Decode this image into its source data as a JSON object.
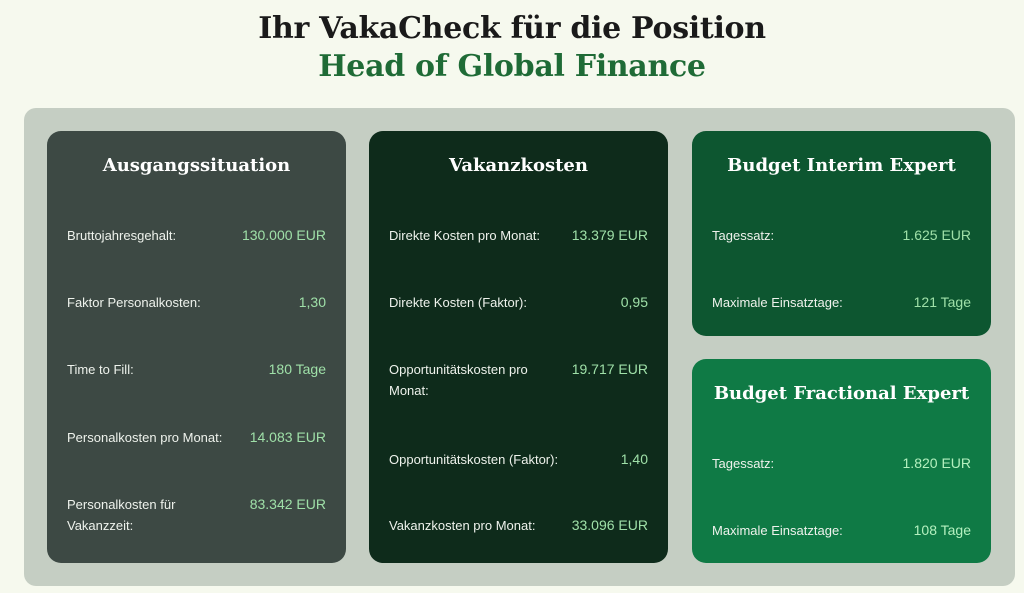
{
  "header": {
    "title": "Ihr VakaCheck für die Position",
    "position": "Head of Global Finance"
  },
  "cards": [
    {
      "title": "Ausgangssituation",
      "rows": [
        {
          "label": "Bruttojahresgehalt:",
          "value": "130.000 EUR"
        },
        {
          "label": "Faktor Personalkosten:",
          "value": "1,30"
        },
        {
          "label": "Time to Fill:",
          "value": "180 Tage"
        },
        {
          "label": "Personalkosten pro Monat:",
          "value": "14.083 EUR"
        },
        {
          "label": "Personalkosten für Vakanzzeit:",
          "value": "83.342 EUR"
        }
      ]
    },
    {
      "title": "Vakanzkosten",
      "rows": [
        {
          "label": "Direkte Kosten pro Monat:",
          "value": "13.379 EUR"
        },
        {
          "label": "Direkte Kosten (Faktor):",
          "value": "0,95"
        },
        {
          "label": "Opportunitätskosten pro Monat:",
          "value": "19.717 EUR"
        },
        {
          "label": "Opportunitätskosten (Faktor):",
          "value": "1,40"
        },
        {
          "label": "Vakanzkosten pro Monat:",
          "value": "33.096 EUR"
        }
      ]
    },
    {
      "title": "Budget Interim Expert",
      "rows": [
        {
          "label": "Tagessatz:",
          "value": "1.625 EUR"
        },
        {
          "label": "Maximale Einsatztage:",
          "value": "121 Tage"
        }
      ]
    },
    {
      "title": "Budget Fractional Expert",
      "rows": [
        {
          "label": "Tagessatz:",
          "value": "1.820 EUR"
        },
        {
          "label": "Maximale Einsatztage:",
          "value": "108 Tage"
        }
      ]
    }
  ],
  "colors": {
    "background": "#f6f9ee",
    "panel": "#c5cec3",
    "card_ausgangssituation": "#3d4944",
    "card_vakanzkosten": "#0e2b1b",
    "card_interim": "#0d5630",
    "card_fractional": "#0f7a45",
    "value_text": "#9fe0a8",
    "position_title": "#1f6b36"
  }
}
